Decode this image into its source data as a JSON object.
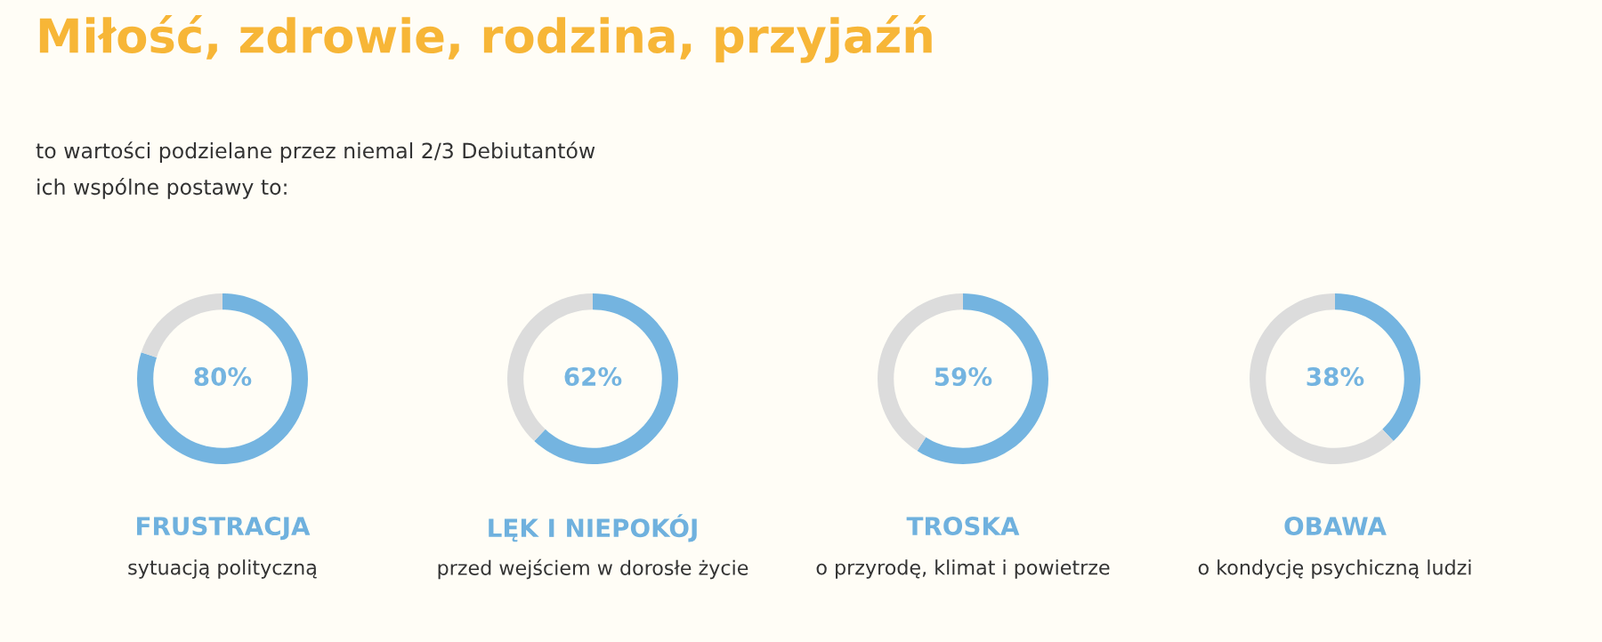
{
  "chart_data": [
    {
      "type": "other",
      "title": "Miłość, zdrowie, rodzina, przyjaźń",
      "subtitle": "to wartości podzielane przez niemal 2/3 Debiutantów\nich wspólne postawy to:"
    },
    {
      "type": "donut",
      "title": "FRUSTRACJA",
      "subtitle": "sytuacją polityczną",
      "categories": [
        null,
        null
      ],
      "values": [
        80,
        20
      ],
      "colors": [
        "#74b4e0",
        "#dcdcdc"
      ],
      "value_labels": [
        "80%",
        null
      ]
    },
    {
      "type": "donut",
      "title": "LĘK I NIEPOKÓJ",
      "subtitle": "przed wejściem w dorosłe życie",
      "categories": [
        null,
        null
      ],
      "values": [
        62,
        38
      ],
      "colors": [
        "#74b4e0",
        "#dcdcdc"
      ],
      "value_labels": [
        "62%",
        null
      ]
    },
    {
      "type": "donut",
      "title": "TROSKA",
      "subtitle": "o przyrodę, klimat i powietrze",
      "categories": [
        null,
        null
      ],
      "values": [
        59,
        41
      ],
      "colors": [
        "#74b4e0",
        "#dcdcdc"
      ],
      "value_labels": [
        "59%",
        null
      ]
    },
    {
      "type": "donut",
      "title": "OBAWA",
      "subtitle": "o kondycję psychiczną ludzi",
      "categories": [
        null,
        null
      ],
      "values": [
        38,
        62
      ],
      "colors": [
        "#74b4e0",
        "#dcdcdc"
      ],
      "value_labels": [
        "38%",
        null
      ]
    }
  ]
}
